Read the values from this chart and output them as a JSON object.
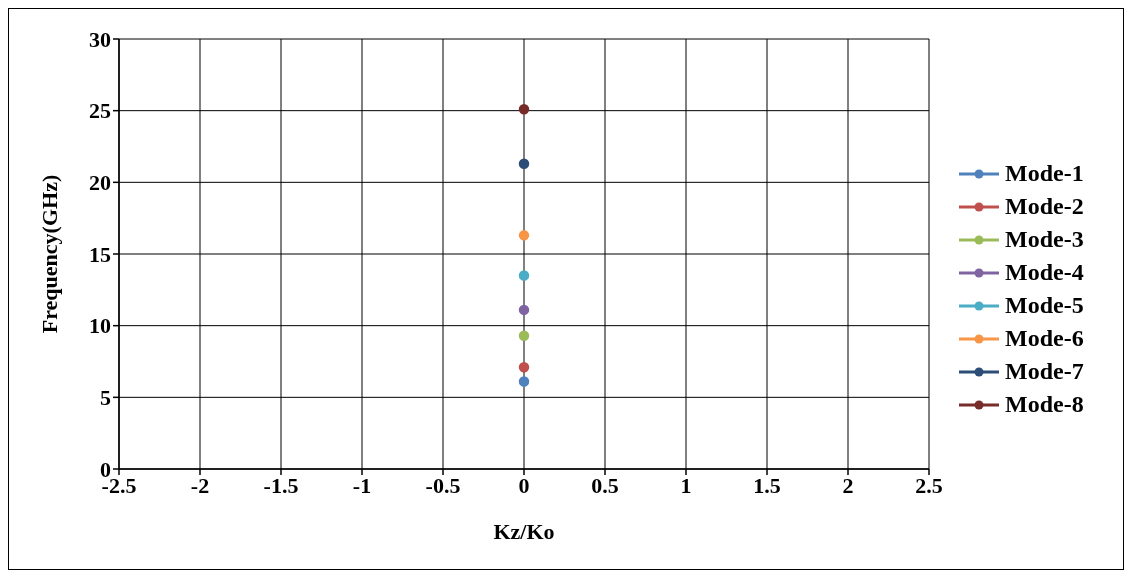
{
  "chart_data": {
    "type": "line",
    "xlabel": "Kz/Ko",
    "ylabel": "Frequency(GHz)",
    "x": [
      0
    ],
    "series": [
      {
        "name": "Mode-1",
        "color": "#4f81bd",
        "values": [
          6.1
        ]
      },
      {
        "name": "Mode-2",
        "color": "#c0504d",
        "values": [
          7.1
        ]
      },
      {
        "name": "Mode-3",
        "color": "#9bbb59",
        "values": [
          9.3
        ]
      },
      {
        "name": "Mode-4",
        "color": "#8064a2",
        "values": [
          11.1
        ]
      },
      {
        "name": "Mode-5",
        "color": "#4bacc6",
        "values": [
          13.5
        ]
      },
      {
        "name": "Mode-6",
        "color": "#f79646",
        "values": [
          16.3
        ]
      },
      {
        "name": "Mode-7",
        "color": "#2c4d75",
        "values": [
          21.3
        ]
      },
      {
        "name": "Mode-8",
        "color": "#772c2a",
        "values": [
          25.1
        ]
      }
    ],
    "xlim": [
      -2.5,
      2.5
    ],
    "xticks": [
      -2.5,
      -2,
      -1.5,
      -1,
      -0.5,
      0,
      0.5,
      1,
      1.5,
      2,
      2.5
    ],
    "ylim": [
      0,
      30
    ],
    "yticks": [
      0,
      5,
      10,
      15,
      20,
      25,
      30
    ],
    "grid": true,
    "legend": "right",
    "marker": "circle",
    "line_style": "solid"
  }
}
